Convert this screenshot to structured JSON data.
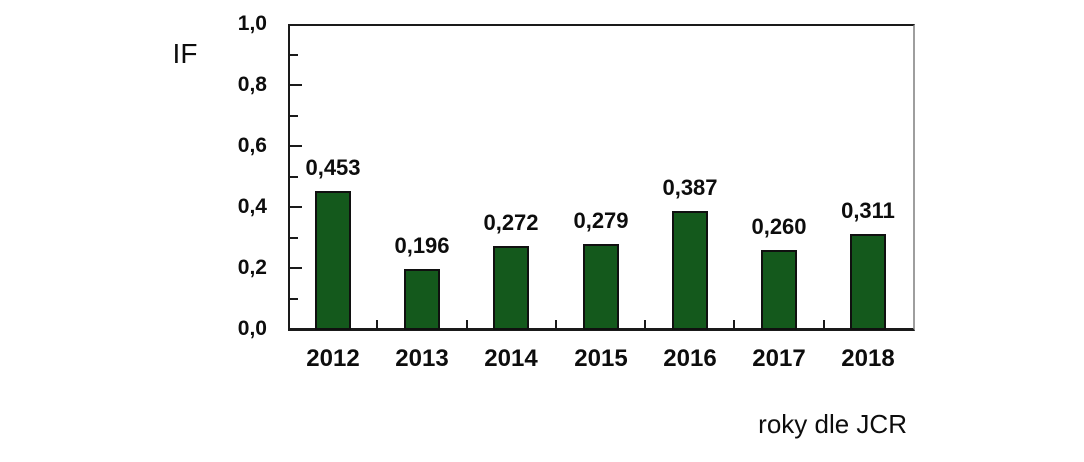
{
  "chart_data": {
    "type": "bar",
    "title": "",
    "ylabel": "IF",
    "xlabel": "roky dle JCR",
    "categories": [
      "2012",
      "2013",
      "2014",
      "2015",
      "2016",
      "2017",
      "2018"
    ],
    "values": [
      0.453,
      0.196,
      0.272,
      0.279,
      0.387,
      0.26,
      0.311
    ],
    "value_labels": [
      "0,453",
      "0,196",
      "0,272",
      "0,279",
      "0,387",
      "0,260",
      "0,311"
    ],
    "ylim": [
      0.0,
      1.0
    ],
    "yticks": [
      {
        "value": 0.0,
        "label": "0,0"
      },
      {
        "value": 0.2,
        "label": "0,2"
      },
      {
        "value": 0.4,
        "label": "0,4"
      },
      {
        "value": 0.6,
        "label": "0,6"
      },
      {
        "value": 0.8,
        "label": "0,8"
      },
      {
        "value": 1.0,
        "label": "1,0"
      }
    ],
    "yticks_minor": [
      0.1,
      0.3,
      0.5,
      0.7,
      0.9
    ],
    "grid": false,
    "legend": "none",
    "decimal_separator": ",",
    "colors": {
      "bar_fill": "#14591c",
      "bar_border": "#101010",
      "axis": "#1a1a1a",
      "plot_right_border": "#9e9e9e",
      "text": "#0d0d0d",
      "background": "#ffffff"
    }
  }
}
